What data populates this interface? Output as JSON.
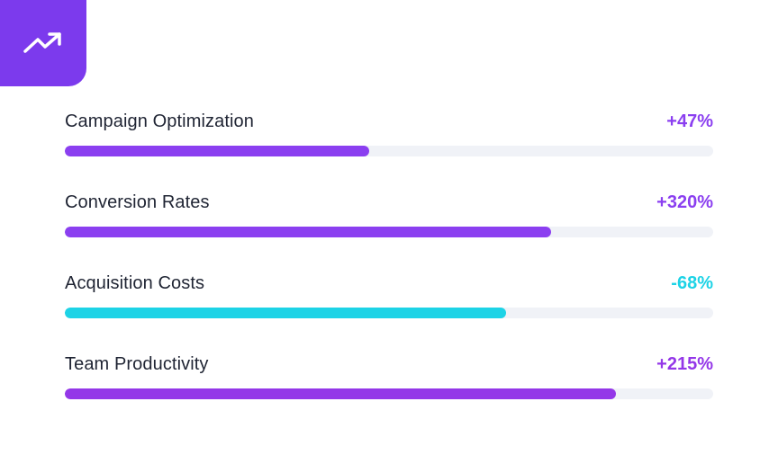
{
  "colors": {
    "accent": "#7c3aed",
    "purple": "#8b3ff0",
    "cyan": "#1dd3e6"
  },
  "badge": {
    "icon": "trending-up-icon"
  },
  "metrics": [
    {
      "label": "Campaign Optimization",
      "value": "+47%",
      "progress": 0.47,
      "color": "#8b3ff0"
    },
    {
      "label": "Conversion Rates",
      "value": "+320%",
      "progress": 0.75,
      "color": "#8b3ff0"
    },
    {
      "label": "Acquisition Costs",
      "value": "-68%",
      "progress": 0.68,
      "color": "#1dd3e6"
    },
    {
      "label": "Team Productivity",
      "value": "+215%",
      "progress": 0.85,
      "color": "#9437e8"
    }
  ]
}
